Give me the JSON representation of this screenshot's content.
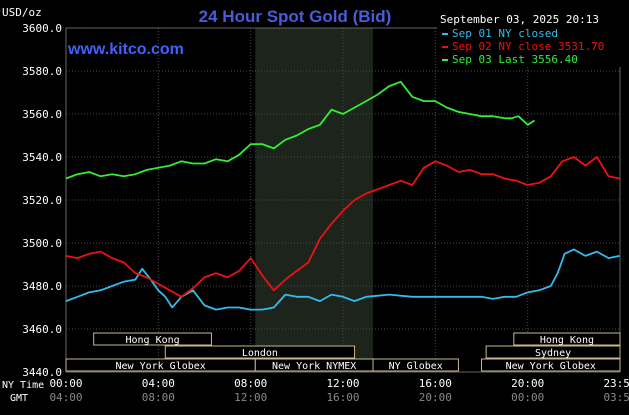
{
  "header": {
    "unit_label": "USD/oz",
    "title": "24 Hour Spot Gold (Bid)",
    "timestamp": "September 03, 2025 20:13",
    "watermark": "www.kitco.com"
  },
  "colors": {
    "background": "#000000",
    "grid": "#4a4a4a",
    "axis_text": "#ffffff",
    "title": "#4a5bd8",
    "watermark": "#3f62ff",
    "highlight_band": "#1c241c",
    "sep01": "#33bbee",
    "sep02": "#ee1111",
    "sep03": "#33ee33",
    "session_box": "#c8b98a"
  },
  "chart_data": {
    "type": "line",
    "title": "24 Hour Spot Gold (Bid)",
    "ylabel": "USD/oz",
    "ylim": [
      3440,
      3600
    ],
    "yticks": [
      "3600.0",
      "3580.0",
      "3560.0",
      "3540.0",
      "3520.0",
      "3500.0",
      "3480.0",
      "3460.0",
      "3440.0"
    ],
    "xlim": [
      0,
      24
    ],
    "xticks_ny": [
      "00:00",
      "04:00",
      "08:00",
      "12:00",
      "16:00",
      "20:00",
      "23:59"
    ],
    "xticks_gmt": [
      "04:00",
      "08:00",
      "12:00",
      "16:00",
      "20:00",
      "00:00",
      "03:59"
    ],
    "xlabel_ny": "NY Time",
    "xlabel_gmt": "GMT",
    "grid": true,
    "legend_position": "top-right",
    "highlight_hours": [
      8.2,
      13.3
    ],
    "series": [
      {
        "name": "Sep 01 NY closed",
        "legend": "Sep 01 NY closed",
        "color": "#33bbee",
        "x": [
          0,
          0.5,
          1,
          1.5,
          2,
          2.5,
          3,
          3.3,
          3.6,
          4,
          4.3,
          4.6,
          5,
          5.5,
          6,
          6.5,
          7,
          7.5,
          8,
          8.5,
          9,
          9.5,
          10,
          10.5,
          11,
          11.5,
          12,
          12.5,
          13,
          14,
          15,
          16,
          17,
          18,
          18.5,
          19,
          19.5,
          20,
          20.5,
          21,
          21.3,
          21.6,
          22,
          22.5,
          23,
          23.5,
          23.98
        ],
        "values": [
          3473,
          3475,
          3477,
          3478,
          3480,
          3482,
          3483,
          3488,
          3484,
          3478,
          3475,
          3470,
          3475,
          3478,
          3471,
          3469,
          3470,
          3470,
          3469,
          3469,
          3470,
          3476,
          3475,
          3475,
          3473,
          3476,
          3475,
          3473,
          3475,
          3476,
          3475,
          3475,
          3475,
          3475,
          3474,
          3475,
          3475,
          3477,
          3478,
          3480,
          3486,
          3495,
          3497,
          3494,
          3496,
          3493,
          3494
        ]
      },
      {
        "name": "Sep 02 NY close 3531.70",
        "legend": "Sep 02 NY close 3531.70",
        "color": "#ee1111",
        "x": [
          0,
          0.5,
          1,
          1.5,
          2,
          2.5,
          3,
          3.5,
          4,
          4.5,
          5,
          5.5,
          6,
          6.5,
          7,
          7.5,
          8,
          8.5,
          9,
          9.5,
          10,
          10.5,
          11,
          11.5,
          12,
          12.5,
          13,
          13.5,
          14,
          14.5,
          15,
          15.5,
          16,
          16.5,
          17,
          17.5,
          18,
          18.5,
          19,
          19.5,
          20,
          20.5,
          21,
          21.5,
          22,
          22.5,
          23,
          23.5,
          23.98
        ],
        "values": [
          3494,
          3493,
          3495,
          3496,
          3493,
          3491,
          3486,
          3484,
          3481,
          3478,
          3475,
          3479,
          3484,
          3486,
          3484,
          3487,
          3493,
          3485,
          3478,
          3483,
          3487,
          3491,
          3502,
          3509,
          3515,
          3520,
          3523,
          3525,
          3527,
          3529,
          3527,
          3535,
          3538,
          3536,
          3533,
          3534,
          3532,
          3532,
          3530,
          3529,
          3527,
          3528,
          3531,
          3538,
          3540,
          3536,
          3540,
          3531,
          3530
        ]
      },
      {
        "name": "Sep 03 Last 3556.40",
        "legend": "Sep 03 Last 3556.40",
        "color": "#33ee33",
        "x": [
          0,
          0.5,
          1,
          1.5,
          2,
          2.5,
          3,
          3.5,
          4,
          4.5,
          5,
          5.5,
          6,
          6.5,
          7,
          7.5,
          8,
          8.5,
          9,
          9.5,
          10,
          10.5,
          11,
          11.5,
          12,
          12.5,
          13,
          13.5,
          14,
          14.5,
          15,
          15.5,
          16,
          16.5,
          17,
          17.5,
          18,
          18.5,
          19,
          19.3,
          19.6,
          20,
          20.3
        ],
        "values": [
          3530,
          3532,
          3533,
          3531,
          3532,
          3531,
          3532,
          3534,
          3535,
          3536,
          3538,
          3537,
          3537,
          3539,
          3538,
          3541,
          3546,
          3546,
          3544,
          3548,
          3550,
          3553,
          3555,
          3562,
          3560,
          3563,
          3566,
          3569,
          3573,
          3575,
          3568,
          3566,
          3566,
          3563,
          3561,
          3560,
          3559,
          3559,
          3558,
          3558,
          3559,
          3555,
          3557
        ]
      }
    ],
    "sessions": [
      {
        "label": "Hong Kong",
        "row": 0,
        "start": 1.2,
        "end": 6.3
      },
      {
        "label": "London",
        "row": 1,
        "start": 4.3,
        "end": 12.5
      },
      {
        "label": "New York Globex",
        "row": 2,
        "start": 0,
        "end": 8.2
      },
      {
        "label": "New York NYMEX",
        "row": 2,
        "start": 8.2,
        "end": 13.3
      },
      {
        "label": "NY Globex",
        "row": 2,
        "start": 13.3,
        "end": 17.0
      },
      {
        "label": "Hong Kong",
        "row": 0,
        "start": 19.4,
        "end": 24
      },
      {
        "label": "Sydney",
        "row": 1,
        "start": 18.2,
        "end": 24
      },
      {
        "label": "New York Globex",
        "row": 2,
        "start": 18.0,
        "end": 24
      }
    ]
  }
}
